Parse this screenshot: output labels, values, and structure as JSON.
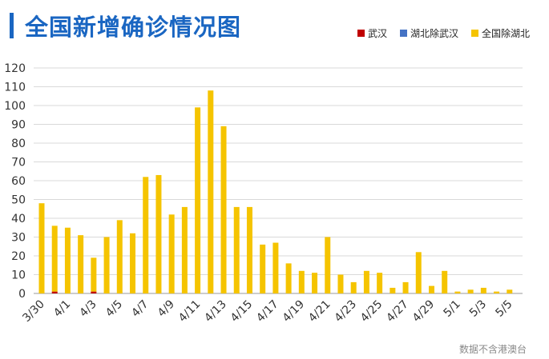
{
  "title": "全国新增确诊情况图",
  "footnote": "数据不含港澳台",
  "colors": {
    "title": "#1a66c2",
    "wuhan": "#c00000",
    "hubei_ex_wuhan": "#4472c4",
    "national_ex_hubei": "#f5c400",
    "grid": "#d9d9d9",
    "axis": "#999999"
  },
  "legend": [
    {
      "label": "武汉",
      "color": "#c00000"
    },
    {
      "label": "湖北除武汉",
      "color": "#4472c4"
    },
    {
      "label": "全国除湖北",
      "color": "#f5c400"
    }
  ],
  "chart_data": {
    "type": "bar",
    "stacked": true,
    "categories": [
      "3/30",
      "3/31",
      "4/1",
      "4/2",
      "4/3",
      "4/4",
      "4/5",
      "4/6",
      "4/7",
      "4/8",
      "4/9",
      "4/10",
      "4/11",
      "4/12",
      "4/13",
      "4/14",
      "4/15",
      "4/16",
      "4/17",
      "4/18",
      "4/19",
      "4/20",
      "4/21",
      "4/22",
      "4/23",
      "4/24",
      "4/25",
      "4/26",
      "4/27",
      "4/28",
      "4/29",
      "4/30",
      "5/1",
      "5/2",
      "5/3",
      "5/4",
      "5/5"
    ],
    "tick_labels": [
      "3/30",
      "4/1",
      "4/3",
      "4/5",
      "4/7",
      "4/9",
      "4/11",
      "4/13",
      "4/15",
      "4/17",
      "4/19",
      "4/21",
      "4/23",
      "4/25",
      "4/27",
      "4/29",
      "5/1",
      "5/3",
      "5/5"
    ],
    "series": [
      {
        "name": "武汉",
        "values": [
          0,
          1,
          0,
          0,
          1,
          0,
          0,
          0,
          0,
          0,
          0,
          0,
          0,
          0,
          0,
          0,
          0,
          0,
          0,
          0,
          0,
          0,
          0,
          0,
          0,
          0,
          0,
          0,
          0,
          0,
          0,
          0,
          0,
          0,
          0,
          0,
          0
        ]
      },
      {
        "name": "湖北除武汉",
        "values": [
          0,
          0,
          0,
          0,
          0,
          0,
          0,
          0,
          0,
          0,
          0,
          0,
          0,
          0,
          0,
          0,
          0,
          0,
          0,
          0,
          0,
          0,
          0,
          0,
          0,
          0,
          0,
          0,
          0,
          0,
          0,
          0,
          0,
          0,
          0,
          0,
          0
        ]
      },
      {
        "name": "全国除湖北",
        "values": [
          48,
          35,
          35,
          31,
          18,
          30,
          39,
          32,
          62,
          63,
          42,
          46,
          99,
          108,
          89,
          46,
          46,
          26,
          27,
          16,
          12,
          11,
          30,
          10,
          6,
          12,
          11,
          3,
          6,
          22,
          4,
          12,
          1,
          2,
          3,
          1,
          2
        ]
      }
    ],
    "ylim": [
      0,
      120
    ],
    "yticks": [
      0,
      10,
      20,
      30,
      40,
      50,
      60,
      70,
      80,
      90,
      100,
      110,
      120
    ],
    "grid": true,
    "legend_position": "top-right"
  }
}
